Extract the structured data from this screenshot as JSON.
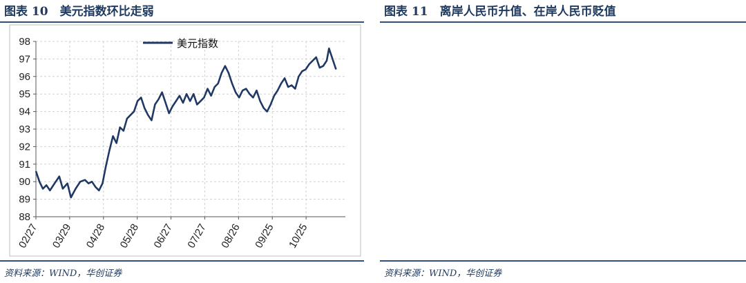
{
  "left": {
    "title": "图表 10　美元指数环比走弱",
    "source": "资料来源：WIND，华创证券",
    "line_color": "#1f3864",
    "chart_data": {
      "type": "line",
      "title": "",
      "xlabel": "",
      "ylabel": "",
      "ylim": [
        88,
        98
      ],
      "yticks": [
        88,
        89,
        90,
        91,
        92,
        93,
        94,
        95,
        96,
        97,
        98
      ],
      "xtick_labels": [
        "02/27",
        "03/29",
        "04/28",
        "05/28",
        "06/27",
        "07/27",
        "08/26",
        "09/25",
        "10/25"
      ],
      "grid": true,
      "legend": "top",
      "series": [
        {
          "name": "美元指数",
          "points": [
            [
              0,
              90.6
            ],
            [
              3,
              90.0
            ],
            [
              6,
              89.6
            ],
            [
              9,
              89.8
            ],
            [
              12,
              89.5
            ],
            [
              16,
              89.9
            ],
            [
              20,
              90.3
            ],
            [
              23,
              89.6
            ],
            [
              27,
              89.9
            ],
            [
              30,
              89.1
            ],
            [
              34,
              89.6
            ],
            [
              38,
              90.0
            ],
            [
              42,
              90.1
            ],
            [
              45,
              89.9
            ],
            [
              48,
              90.0
            ],
            [
              51,
              89.7
            ],
            [
              54,
              89.5
            ],
            [
              57,
              89.9
            ],
            [
              60,
              90.9
            ],
            [
              63,
              91.8
            ],
            [
              66,
              92.6
            ],
            [
              69,
              92.2
            ],
            [
              72,
              93.1
            ],
            [
              75,
              92.9
            ],
            [
              78,
              93.6
            ],
            [
              81,
              93.8
            ],
            [
              84,
              94.0
            ],
            [
              87,
              94.6
            ],
            [
              90,
              94.8
            ],
            [
              93,
              94.2
            ],
            [
              96,
              93.8
            ],
            [
              99,
              93.5
            ],
            [
              102,
              94.4
            ],
            [
              105,
              94.7
            ],
            [
              108,
              95.1
            ],
            [
              111,
              94.5
            ],
            [
              114,
              93.9
            ],
            [
              117,
              94.3
            ],
            [
              120,
              94.6
            ],
            [
              123,
              94.9
            ],
            [
              126,
              94.5
            ],
            [
              129,
              95.0
            ],
            [
              132,
              94.6
            ],
            [
              135,
              95.0
            ],
            [
              138,
              94.4
            ],
            [
              141,
              94.6
            ],
            [
              144,
              94.8
            ],
            [
              147,
              95.3
            ],
            [
              150,
              94.9
            ],
            [
              153,
              95.4
            ],
            [
              156,
              95.6
            ],
            [
              159,
              96.2
            ],
            [
              162,
              96.6
            ],
            [
              165,
              96.2
            ],
            [
              168,
              95.6
            ],
            [
              171,
              95.1
            ],
            [
              174,
              94.8
            ],
            [
              177,
              95.2
            ],
            [
              180,
              95.3
            ],
            [
              183,
              95.0
            ],
            [
              186,
              94.8
            ],
            [
              189,
              95.2
            ],
            [
              192,
              94.6
            ],
            [
              195,
              94.2
            ],
            [
              198,
              94.0
            ],
            [
              201,
              94.4
            ],
            [
              204,
              94.9
            ],
            [
              207,
              95.2
            ],
            [
              210,
              95.6
            ],
            [
              213,
              95.9
            ],
            [
              216,
              95.4
            ],
            [
              219,
              95.5
            ],
            [
              222,
              95.3
            ],
            [
              225,
              96.0
            ],
            [
              228,
              96.3
            ],
            [
              231,
              96.4
            ],
            [
              234,
              96.7
            ],
            [
              237,
              96.9
            ],
            [
              240,
              97.1
            ],
            [
              243,
              96.5
            ],
            [
              246,
              96.6
            ],
            [
              249,
              96.9
            ],
            [
              251,
              97.6
            ],
            [
              253,
              97.2
            ],
            [
              255,
              96.8
            ],
            [
              257,
              96.4
            ]
          ]
        }
      ]
    }
  },
  "right": {
    "title": "图表 11　离岸人民币升值、在岸人民币贬值",
    "source": "资料来源：WIND，华创证券"
  }
}
